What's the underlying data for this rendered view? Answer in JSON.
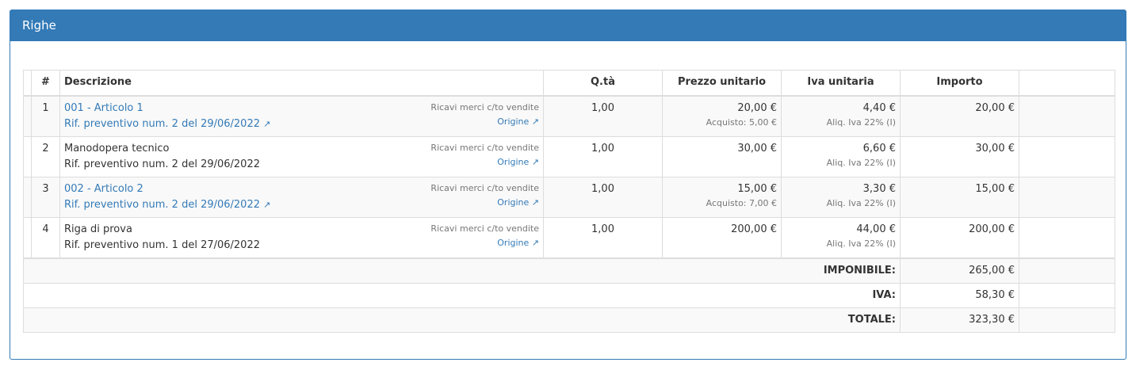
{
  "panel": {
    "title": "Righe"
  },
  "headers": {
    "num": "#",
    "desc": "Descrizione",
    "qty": "Q.tà",
    "price": "Prezzo unitario",
    "vat": "Iva unitaria",
    "amount": "Importo"
  },
  "rows": [
    {
      "num": "1",
      "title": "001 - Articolo 1",
      "ref": "Rif. preventivo num. 2 del 29/06/2022",
      "linked": true,
      "account": "Ricavi merci c/to vendite",
      "origin": "Origine",
      "qty": "1,00",
      "price": "20,00 €",
      "purchase": "Acquisto: 5,00 €",
      "vat": "4,40 €",
      "vat_rate": "Aliq. Iva 22% (I)",
      "amount": "20,00 €"
    },
    {
      "num": "2",
      "title": "Manodopera tecnico",
      "ref": "Rif. preventivo num. 2 del 29/06/2022",
      "linked": false,
      "account": "Ricavi merci c/to vendite",
      "origin": "Origine",
      "qty": "1,00",
      "price": "30,00 €",
      "purchase": "",
      "vat": "6,60 €",
      "vat_rate": "Aliq. Iva 22% (I)",
      "amount": "30,00 €"
    },
    {
      "num": "3",
      "title": "002 - Articolo 2",
      "ref": "Rif. preventivo num. 2 del 29/06/2022",
      "linked": true,
      "account": "Ricavi merci c/to vendite",
      "origin": "Origine",
      "qty": "1,00",
      "price": "15,00 €",
      "purchase": "Acquisto: 7,00 €",
      "vat": "3,30 €",
      "vat_rate": "Aliq. Iva 22% (I)",
      "amount": "15,00 €"
    },
    {
      "num": "4",
      "title": "Riga di prova",
      "ref": "Rif. preventivo num. 1 del 27/06/2022",
      "linked": false,
      "account": "Ricavi merci c/to vendite",
      "origin": "Origine",
      "qty": "1,00",
      "price": "200,00 €",
      "purchase": "",
      "vat": "44,00 €",
      "vat_rate": "Aliq. Iva 22% (I)",
      "amount": "200,00 €"
    }
  ],
  "totals": [
    {
      "label": "IMPONIBILE:",
      "value": "265,00 €"
    },
    {
      "label": "IVA:",
      "value": "58,30 €"
    },
    {
      "label": "TOTALE:",
      "value": "323,30 €"
    }
  ],
  "colors": {
    "primary": "#337ab7"
  },
  "icons": {
    "external": "external-link-icon"
  }
}
